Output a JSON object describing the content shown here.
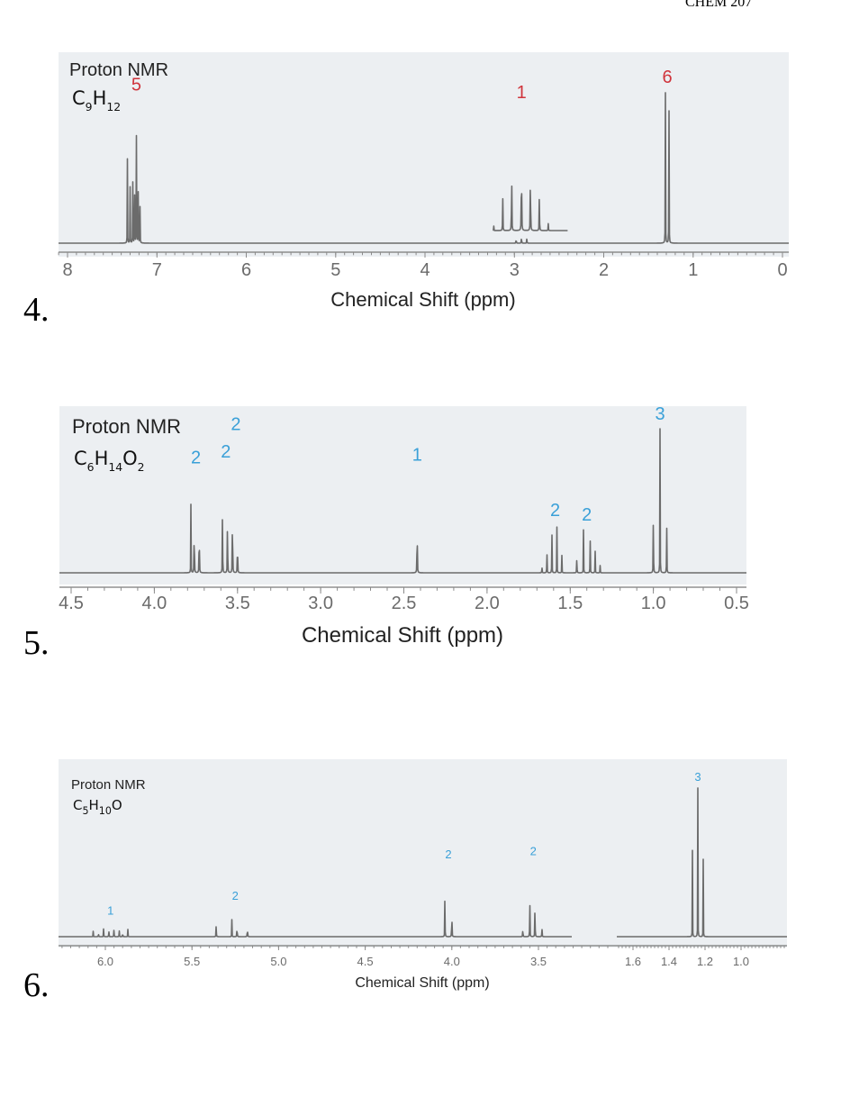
{
  "page": {
    "header": "CHEM 207"
  },
  "chart_data": [
    {
      "type": "line",
      "question_number": "4.",
      "title": "Proton NMR",
      "formula": {
        "parts": [
          [
            "C",
            ""
          ],
          [
            "9",
            "sub"
          ],
          [
            "H",
            ""
          ],
          [
            "12",
            "sub"
          ]
        ]
      },
      "xlabel": "Chemical Shift (ppm)",
      "xlim": [
        8,
        0
      ],
      "xticks": [
        "8",
        "7",
        "6",
        "5",
        "4",
        "3",
        "2",
        "1",
        "0"
      ],
      "xtick_values": [
        8,
        7,
        6,
        5,
        4,
        3,
        2,
        1,
        0
      ],
      "label_color": "#d0343c",
      "peaks": [
        {
          "label": "5",
          "center": 7.23,
          "lines": [
            [
              7.33,
              0.55
            ],
            [
              7.3,
              0.38
            ],
            [
              7.27,
              0.45
            ],
            [
              7.25,
              0.38
            ],
            [
              7.23,
              0.95
            ],
            [
              7.21,
              0.5
            ],
            [
              7.19,
              0.4
            ]
          ]
        },
        {
          "label": "1",
          "center": 2.92,
          "lines": [
            [
              2.98,
              0.06
            ],
            [
              2.92,
              0.08
            ],
            [
              2.86,
              0.06
            ]
          ],
          "inset": {
            "offset": 0.08,
            "lines": [
              [
                3.23,
                0.03
              ],
              [
                3.13,
                0.28
              ],
              [
                3.03,
                0.62
              ],
              [
                2.92,
                0.86
              ],
              [
                2.82,
                0.67
              ],
              [
                2.72,
                0.32
              ],
              [
                2.62,
                0.05
              ]
            ]
          }
        },
        {
          "label": "6",
          "center": 1.29,
          "lines": [
            [
              1.31,
              1.0
            ],
            [
              1.27,
              0.98
            ]
          ]
        }
      ]
    },
    {
      "type": "line",
      "question_number": "5.",
      "title": "Proton NMR",
      "formula": {
        "parts": [
          [
            "C",
            ""
          ],
          [
            "6",
            "sub"
          ],
          [
            "H",
            ""
          ],
          [
            "14",
            "sub"
          ],
          [
            "O",
            ""
          ],
          [
            "2",
            "sub"
          ]
        ]
      },
      "xlabel": "Chemical Shift (ppm)",
      "xlim": [
        4.5,
        0.5
      ],
      "xticks": [
        "4.5",
        "4.0",
        "3.5",
        "3.0",
        "2.5",
        "2.0",
        "1.5",
        "1.0",
        "0.5"
      ],
      "xtick_values": [
        4.5,
        4.0,
        3.5,
        3.0,
        2.5,
        2.0,
        1.5,
        1.0,
        0.5
      ],
      "label_color": "#3aa0d8",
      "peaks": [
        {
          "label": "2",
          "center": 3.75,
          "lines": [
            [
              3.78,
              0.48
            ],
            [
              3.76,
              0.7
            ],
            [
              3.73,
              0.69
            ]
          ]
        },
        {
          "label": "2",
          "center": 3.56,
          "lines": [
            [
              3.59,
              0.69
            ],
            [
              3.56,
              0.74
            ],
            [
              3.53,
              0.93
            ],
            [
              3.5,
              0.5
            ]
          ]
        },
        {
          "label": "2",
          "center": 3.51,
          "lines": []
        },
        {
          "label": "1",
          "center": 2.42,
          "lines": [
            [
              2.42,
              0.72
            ]
          ]
        },
        {
          "label": "2",
          "center": 1.59,
          "lines": [
            [
              1.67,
              0.08
            ],
            [
              1.64,
              0.22
            ],
            [
              1.61,
              0.34
            ],
            [
              1.58,
              0.33
            ],
            [
              1.55,
              0.12
            ]
          ]
        },
        {
          "label": "2",
          "center": 1.4,
          "lines": [
            [
              1.46,
              0.18
            ],
            [
              1.42,
              0.31
            ],
            [
              1.38,
              0.3
            ],
            [
              1.35,
              0.16
            ],
            [
              1.32,
              0.05
            ]
          ]
        },
        {
          "label": "3",
          "center": 0.96,
          "lines": [
            [
              1.0,
              0.63
            ],
            [
              0.96,
              1.0
            ],
            [
              0.92,
              0.47
            ]
          ]
        }
      ]
    },
    {
      "type": "line",
      "question_number": "6.",
      "title": "Proton NMR",
      "formula": {
        "parts": [
          [
            "C",
            ""
          ],
          [
            "5",
            "sub"
          ],
          [
            "H",
            ""
          ],
          [
            "10",
            "sub"
          ],
          [
            "O",
            ""
          ]
        ]
      },
      "xlabel": "Chemical Shift (ppm)",
      "segments": [
        {
          "xlim": [
            6.25,
            3.3
          ],
          "xticks": [
            "6.0",
            "5.5",
            "5.0",
            "4.5",
            "4.0",
            "3.5"
          ],
          "xtick_values": [
            6.0,
            5.5,
            5.0,
            4.5,
            4.0,
            3.5
          ]
        },
        {
          "xlim": [
            1.7,
            0.75
          ],
          "xticks": [
            "1.6",
            "1.4",
            "1.2",
            "1.0"
          ],
          "xtick_values": [
            1.6,
            1.4,
            1.2,
            1.0
          ]
        }
      ],
      "label_color": "#3aa0d8",
      "peaks": [
        {
          "label": "1",
          "center": 5.97,
          "segment": 0,
          "lines": [
            [
              6.07,
              0.04
            ],
            [
              6.04,
              0.06
            ],
            [
              6.01,
              0.08
            ],
            [
              5.98,
              0.1
            ],
            [
              5.95,
              0.1
            ],
            [
              5.92,
              0.08
            ],
            [
              5.9,
              0.07
            ],
            [
              5.87,
              0.05
            ]
          ]
        },
        {
          "label": "2",
          "center": 5.25,
          "segment": 0,
          "lines": [
            [
              5.36,
              0.18
            ],
            [
              5.27,
              0.14
            ],
            [
              5.24,
              0.2
            ],
            [
              5.18,
              0.18
            ]
          ]
        },
        {
          "label": "2",
          "center": 4.02,
          "segment": 0,
          "lines": [
            [
              4.04,
              0.48
            ],
            [
              4.0,
              0.46
            ]
          ]
        },
        {
          "label": "2",
          "center": 3.53,
          "segment": 0,
          "lines": [
            [
              3.59,
              0.14
            ],
            [
              3.55,
              0.49
            ],
            [
              3.52,
              0.5
            ],
            [
              3.48,
              0.15
            ]
          ]
        },
        {
          "label": "3",
          "center": 1.24,
          "segment": 1,
          "lines": [
            [
              1.27,
              0.58
            ],
            [
              1.24,
              1.0
            ],
            [
              1.21,
              0.52
            ]
          ]
        }
      ]
    }
  ]
}
